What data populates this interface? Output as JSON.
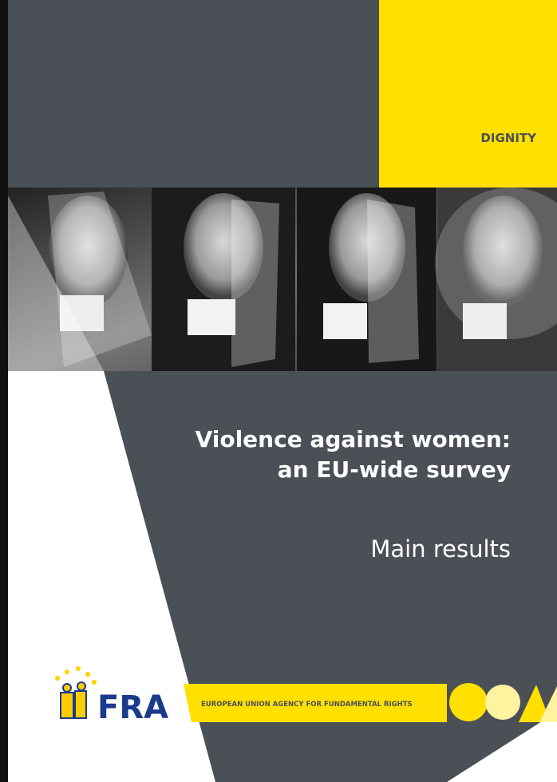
{
  "cover": {
    "theme": "DIGNITY",
    "title": [
      "Violence against women:",
      "an EU-wide survey"
    ],
    "subtitle": "Main results",
    "logo": {
      "acronym": "FRA",
      "agency": "EUROPEAN UNION AGENCY FOR FUNDAMENTAL RIGHTS"
    }
  }
}
